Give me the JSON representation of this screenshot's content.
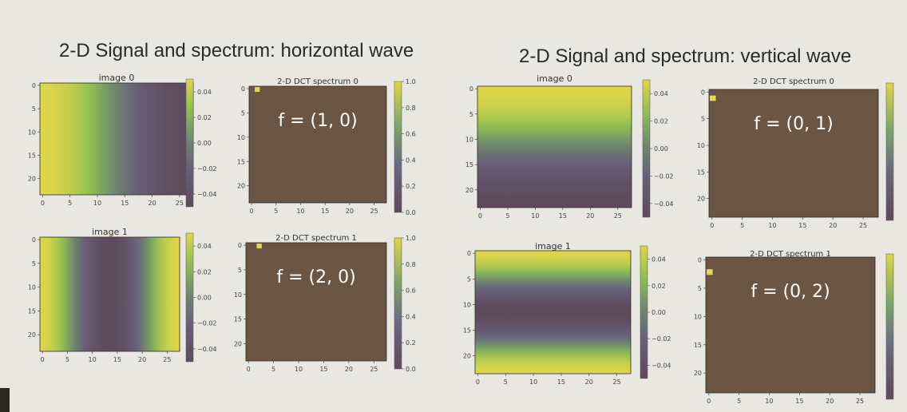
{
  "titles": {
    "left": "2-D Signal and spectrum: horizontal wave",
    "right": "2-D Signal and spectrum: vertical wave"
  },
  "colors": {
    "viridis_low": "#5e4a5c",
    "viridis_mid_low": "#6a6478",
    "viridis_mid": "#7a9a6a",
    "viridis_high": "#dcd64a",
    "dct_background": "#6b5544",
    "dct_peak": "#e6d84c",
    "frame": "#2a2a2a"
  },
  "chart_data": [
    {
      "type": "heatmap",
      "group": "horizontal wave",
      "title": "image 0",
      "orientation": "horizontal",
      "frequency": 1,
      "xticks": [
        "0",
        "5",
        "10",
        "15",
        "20",
        "25"
      ],
      "yticks": [
        "0",
        "5",
        "10",
        "15",
        "20"
      ],
      "colorbar_ticks": [
        "0.04",
        "0.02",
        "0.00",
        "−0.02",
        "−0.04"
      ]
    },
    {
      "type": "heatmap",
      "group": "horizontal wave",
      "title": "2-D DCT spectrum 0",
      "annotation": "f = (1, 0)",
      "peak": [
        1,
        0
      ],
      "xticks": [
        "0",
        "5",
        "10",
        "15",
        "20",
        "25"
      ],
      "yticks": [
        "0",
        "5",
        "10",
        "15",
        "20"
      ],
      "colorbar_ticks": [
        "1.0",
        "0.8",
        "0.6",
        "0.4",
        "0.2",
        "0.0"
      ]
    },
    {
      "type": "heatmap",
      "group": "horizontal wave",
      "title": "image 1",
      "orientation": "horizontal",
      "frequency": 2,
      "xticks": [
        "0",
        "5",
        "10",
        "15",
        "20",
        "25"
      ],
      "yticks": [
        "0",
        "5",
        "10",
        "15",
        "20"
      ],
      "colorbar_ticks": [
        "0.04",
        "0.02",
        "0.00",
        "−0.02",
        "−0.04"
      ]
    },
    {
      "type": "heatmap",
      "group": "horizontal wave",
      "title": "2-D DCT spectrum 1",
      "annotation": "f = (2, 0)",
      "peak": [
        2,
        0
      ],
      "xticks": [
        "0",
        "5",
        "10",
        "15",
        "20",
        "25"
      ],
      "yticks": [
        "0",
        "5",
        "10",
        "15",
        "20"
      ],
      "colorbar_ticks": [
        "1.0",
        "0.8",
        "0.6",
        "0.4",
        "0.2",
        "0.0"
      ]
    },
    {
      "type": "heatmap",
      "group": "vertical wave",
      "title": "image 0",
      "orientation": "vertical",
      "frequency": 1,
      "xticks": [
        "0",
        "5",
        "10",
        "15",
        "20",
        "25"
      ],
      "yticks": [
        "0",
        "5",
        "10",
        "15",
        "20"
      ],
      "colorbar_ticks": [
        "0.04",
        "0.02",
        "0.00",
        "−0.02",
        "−0.04"
      ]
    },
    {
      "type": "heatmap",
      "group": "vertical wave",
      "title": "2-D DCT spectrum 0",
      "annotation": "f = (0, 1)",
      "peak": [
        0,
        1
      ],
      "xticks": [
        "0",
        "5",
        "10",
        "15",
        "20",
        "25"
      ],
      "yticks": [
        "0",
        "5",
        "10",
        "15",
        "20"
      ],
      "colorbar_ticks": []
    },
    {
      "type": "heatmap",
      "group": "vertical wave",
      "title": "image 1",
      "orientation": "vertical",
      "frequency": 2,
      "xticks": [
        "0",
        "5",
        "10",
        "15",
        "20",
        "25"
      ],
      "yticks": [
        "0",
        "5",
        "10",
        "15",
        "20"
      ],
      "colorbar_ticks": [
        "0.04",
        "0.02",
        "0.00",
        "−0.02",
        "−0.04"
      ]
    },
    {
      "type": "heatmap",
      "group": "vertical wave",
      "title": "2-D DCT spectrum 1",
      "annotation": "f = (0, 2)",
      "peak": [
        0,
        2
      ],
      "xticks": [
        "0",
        "5",
        "10",
        "15",
        "20",
        "25"
      ],
      "yticks": [
        "0",
        "5",
        "10",
        "15",
        "20"
      ],
      "colorbar_ticks": []
    }
  ]
}
